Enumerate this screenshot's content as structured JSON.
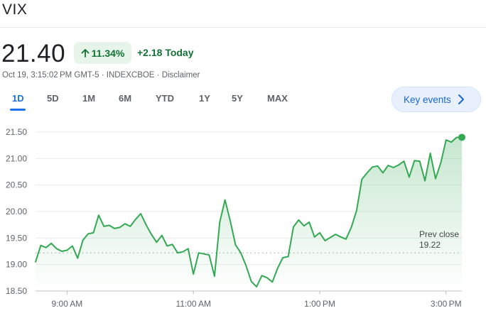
{
  "header": {
    "title": "VIX",
    "price": "21.40",
    "percent_change": "11.34%",
    "absolute_change": "+2.18 Today",
    "meta": "Oct 19, 3:15:02 PM GMT-5 · INDEXCBOE · Disclaimer",
    "up_arrow_icon": "arrow-up-icon"
  },
  "range_tabs": [
    {
      "label": "1D",
      "active": true
    },
    {
      "label": "5D",
      "active": false
    },
    {
      "label": "1M",
      "active": false
    },
    {
      "label": "6M",
      "active": false
    },
    {
      "label": "YTD",
      "active": false
    },
    {
      "label": "1Y",
      "active": false
    },
    {
      "label": "5Y",
      "active": false
    },
    {
      "label": "MAX",
      "active": false
    }
  ],
  "key_events": {
    "label": "Key events",
    "icon": "chevron-right-icon"
  },
  "colors": {
    "positive": "#137333",
    "positive_bg": "#e6f4ea",
    "line": "#34a853",
    "accent": "#1a73e8",
    "grid": "#ebebeb",
    "prev_close_dots": "#9aa0a6"
  },
  "chart_data": {
    "type": "line",
    "title": "",
    "xlabel": "",
    "ylabel": "",
    "ylim": [
      18.5,
      21.5
    ],
    "xlim": [
      "08:30",
      "15:15"
    ],
    "y_ticks": [
      "21.50",
      "21.00",
      "20.50",
      "20.00",
      "19.50",
      "19.00",
      "18.50"
    ],
    "x_ticks": [
      {
        "time": "09:00",
        "label": "9:00 AM"
      },
      {
        "time": "11:00",
        "label": "11:00 AM"
      },
      {
        "time": "13:00",
        "label": "1:00 PM"
      },
      {
        "time": "15:00",
        "label": "3:00 PM"
      }
    ],
    "grid": true,
    "prev_close": {
      "value": 19.22,
      "label": "Prev close",
      "value_label": "19.22"
    },
    "last_point_marker": true,
    "series": [
      {
        "x": [
          "08:30",
          "08:35",
          "08:40",
          "08:45",
          "08:50",
          "08:55",
          "09:00",
          "09:05",
          "09:10",
          "09:15",
          "09:20",
          "09:25",
          "09:30",
          "09:35",
          "09:40",
          "09:45",
          "09:50",
          "09:55",
          "10:00",
          "10:05",
          "10:10",
          "10:15",
          "10:20",
          "10:25",
          "10:30",
          "10:35",
          "10:40",
          "10:45",
          "10:50",
          "10:55",
          "11:00",
          "11:05",
          "11:10",
          "11:15",
          "11:20",
          "11:25",
          "11:30",
          "11:35",
          "11:40",
          "11:45",
          "11:50",
          "11:55",
          "12:00",
          "12:05",
          "12:10",
          "12:15",
          "12:20",
          "12:25",
          "12:30",
          "12:35",
          "12:40",
          "12:45",
          "12:50",
          "12:55",
          "13:00",
          "13:05",
          "13:10",
          "13:15",
          "13:20",
          "13:25",
          "13:30",
          "13:35",
          "13:40",
          "13:45",
          "13:50",
          "13:55",
          "14:00",
          "14:05",
          "14:10",
          "14:15",
          "14:20",
          "14:25",
          "14:30",
          "14:35",
          "14:40",
          "14:45",
          "14:50",
          "14:55",
          "15:00",
          "15:05",
          "15:10",
          "15:15"
        ],
        "values": [
          19.05,
          19.36,
          19.32,
          19.4,
          19.3,
          19.25,
          19.27,
          19.35,
          19.12,
          19.46,
          19.58,
          19.6,
          19.93,
          19.72,
          19.74,
          19.68,
          19.7,
          19.77,
          19.72,
          19.85,
          19.96,
          19.75,
          19.57,
          19.42,
          19.55,
          19.35,
          19.38,
          19.22,
          19.24,
          19.3,
          18.82,
          19.22,
          19.2,
          19.18,
          18.78,
          19.8,
          20.22,
          19.82,
          19.37,
          19.22,
          18.98,
          18.68,
          18.58,
          18.79,
          18.75,
          18.67,
          18.93,
          19.13,
          19.15,
          19.71,
          19.84,
          19.73,
          19.8,
          19.52,
          19.6,
          19.45,
          19.51,
          19.57,
          19.52,
          19.48,
          19.7,
          20.02,
          20.61,
          20.73,
          20.84,
          20.86,
          20.73,
          20.87,
          20.83,
          20.88,
          20.95,
          20.65,
          20.96,
          20.95,
          20.58,
          21.1,
          20.62,
          20.92,
          21.35,
          21.31,
          21.4,
          21.4
        ]
      }
    ]
  }
}
